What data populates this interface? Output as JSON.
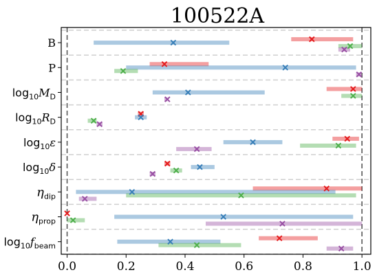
{
  "chart_data": {
    "type": "interval",
    "title": "100522A",
    "xlabel": "",
    "ylabel": "",
    "xlim": [
      -0.02,
      1.03
    ],
    "xticks": [
      "0.0",
      "0.2",
      "0.4",
      "0.6",
      "0.8",
      "1.0"
    ],
    "grid": false,
    "legend": "none",
    "reference_lines": [
      0,
      1
    ],
    "rows": [
      {
        "label": "B",
        "label_style": "roman"
      },
      {
        "label": "P",
        "label_style": "roman"
      },
      {
        "label": "log₁₀M_D",
        "label_style": "math",
        "prefix": "log",
        "sub1": "10",
        "main": "M",
        "sub2": "D"
      },
      {
        "label": "log₁₀R_D",
        "label_style": "math",
        "prefix": "log",
        "sub1": "10",
        "main": "R",
        "sub2": "D"
      },
      {
        "label": "log₁₀ε",
        "label_style": "math",
        "prefix": "log",
        "sub1": "10",
        "main": "ε",
        "sub2": ""
      },
      {
        "label": "log₁₀δ",
        "label_style": "math",
        "prefix": "log",
        "sub1": "10",
        "main": "δ",
        "sub2": ""
      },
      {
        "label": "η_dip",
        "label_style": "math",
        "prefix": "",
        "sub1": "",
        "main": "η",
        "sub2": "dip"
      },
      {
        "label": "η_prop",
        "label_style": "math",
        "prefix": "",
        "sub1": "",
        "main": "η",
        "sub2": "prop"
      },
      {
        "label": "log₁₀f_beam",
        "label_style": "math",
        "prefix": "log",
        "sub1": "10",
        "main": "f",
        "sub2": "beam"
      }
    ],
    "series": [
      {
        "color": "#e41a1c",
        "lower": [
          0.76,
          0.28,
          0.88,
          0.24,
          0.9,
          0.33,
          0.63,
          0.0,
          0.65
        ],
        "upper": [
          0.97,
          0.48,
          1.0,
          0.26,
          0.99,
          0.35,
          1.0,
          0.0,
          0.85
        ],
        "best": [
          0.83,
          0.33,
          0.97,
          0.25,
          0.95,
          0.34,
          0.88,
          0.0,
          0.72
        ]
      },
      {
        "color": "#377eb8",
        "lower": [
          0.09,
          0.2,
          0.29,
          0.23,
          0.53,
          0.42,
          0.03,
          0.16,
          0.17
        ],
        "upper": [
          0.55,
          0.98,
          0.67,
          0.27,
          0.73,
          0.5,
          0.91,
          0.97,
          0.52
        ],
        "best": [
          0.36,
          0.74,
          0.41,
          0.25,
          0.63,
          0.45,
          0.22,
          0.53,
          0.35
        ]
      },
      {
        "color": "#4daf4a",
        "lower": [
          0.92,
          0.16,
          0.93,
          0.07,
          0.79,
          0.35,
          0.2,
          0.0,
          0.31
        ],
        "upper": [
          1.0,
          0.24,
          1.0,
          0.1,
          0.98,
          0.39,
          0.98,
          0.06,
          0.59
        ],
        "best": [
          0.96,
          0.19,
          0.97,
          0.09,
          0.92,
          0.37,
          0.59,
          0.02,
          0.44
        ]
      },
      {
        "color": "#984ea3",
        "lower": [
          0.92,
          0.98,
          0.33,
          0.1,
          0.37,
          0.28,
          0.04,
          0.47,
          0.88
        ],
        "upper": [
          0.96,
          1.0,
          0.34,
          0.12,
          0.49,
          0.3,
          0.1,
          1.0,
          0.97
        ],
        "best": [
          0.94,
          0.99,
          0.34,
          0.11,
          0.44,
          0.29,
          0.06,
          0.73,
          0.93
        ]
      }
    ]
  }
}
